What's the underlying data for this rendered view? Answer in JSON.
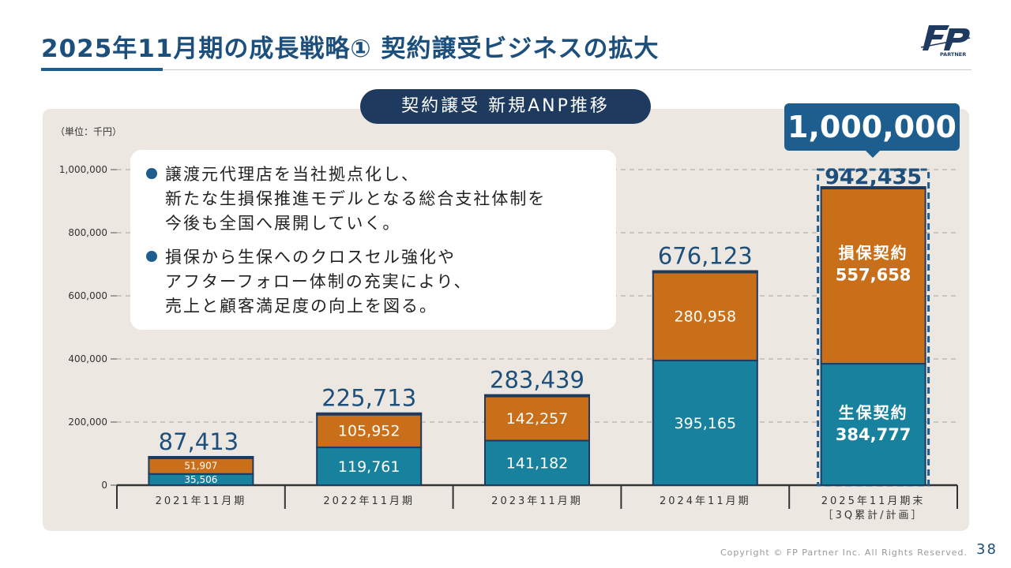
{
  "slide": {
    "title": "2025年11月期の成長戦略① 契約譲受ビジネスの拡大",
    "logo_text": "PARTNER",
    "copyright": "Copyright © FP Partner Inc. All Rights Reserved.",
    "page_number": "38"
  },
  "callout": {
    "items": [
      "譲渡元代理店を当社拠点化し、\n新たな生損保推進モデルとなる総合支社体制を\n今後も全国へ展開していく。",
      "損保から生保へのクロスセル強化や\nアフターフォロー体制の充実により、\n売上と顧客満足度の向上を図る。"
    ]
  },
  "target": {
    "label": "1,000,000",
    "value": 1000000
  },
  "colors": {
    "life": "#18829e",
    "nonlife": "#c96f19",
    "bar_border": "#1e3a5f",
    "title": "#1d4f7c",
    "panel": "#ece8e1"
  },
  "chart_data": {
    "type": "bar",
    "stacked": true,
    "title": "契約譲受 新規ANP推移",
    "unit_label": "（単位：千円）",
    "categories": [
      "2021年11月期",
      "2022年11月期",
      "2023年11月期",
      "2024年11月期",
      "2025年11月期末\n［3Q累計/計画］"
    ],
    "series": [
      {
        "key": "life",
        "values": [
          35506,
          119761,
          141182,
          395165,
          384777
        ],
        "labels": [
          "35,506",
          "119,761",
          "141,182",
          "395,165",
          "384,777"
        ]
      },
      {
        "key": "nonlife",
        "values": [
          51907,
          105952,
          142257,
          280958,
          557658
        ],
        "labels": [
          "51,907",
          "105,952",
          "142,257",
          "280,958",
          "557,658"
        ]
      }
    ],
    "totals": [
      87413,
      225713,
      283439,
      676123,
      942435
    ],
    "total_labels": [
      "87,413",
      "225,713",
      "283,439",
      "676,123",
      "942,435"
    ],
    "highlight_series_names": {
      "nonlife": "損保契約",
      "life": "生保契約"
    },
    "ylim": [
      0,
      1000000
    ],
    "yticks": [
      0,
      200000,
      400000,
      600000,
      800000,
      1000000
    ],
    "ytick_labels": [
      "0",
      "200,000",
      "400,000",
      "600,000",
      "800,000",
      "1,000,000"
    ],
    "grid": "dashed-horizontal"
  }
}
